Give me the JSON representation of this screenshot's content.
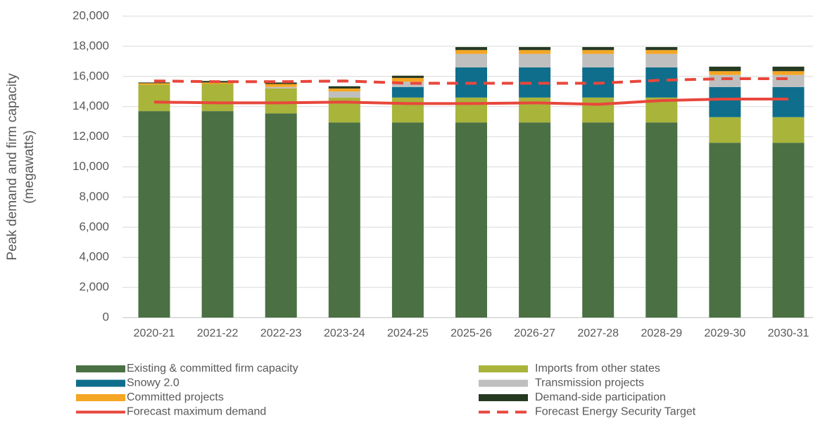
{
  "chart_data": {
    "type": "bar",
    "stacked": true,
    "y_label": [
      "Peak demand and firm capacity",
      "(megawatts)"
    ],
    "categories": [
      "2020-21",
      "2021-22",
      "2022-23",
      "2023-24",
      "2024-25",
      "2025-26",
      "2026-27",
      "2027-28",
      "2028-29",
      "2029-30",
      "2030-31"
    ],
    "series": [
      {
        "name": "Existing & committed firm capacity",
        "color": "#4a7043",
        "values": [
          13700,
          13700,
          13550,
          12950,
          12950,
          12950,
          12950,
          12950,
          12950,
          11600,
          11600
        ]
      },
      {
        "name": "Imports from other states",
        "color": "#a8b43a",
        "values": [
          1750,
          1800,
          1650,
          1650,
          1650,
          1650,
          1650,
          1650,
          1650,
          1700,
          1700
        ]
      },
      {
        "name": "Snowy 2.0",
        "color": "#0e6e8c",
        "values": [
          0,
          0,
          0,
          0,
          700,
          2000,
          2000,
          2000,
          2000,
          2000,
          2000
        ]
      },
      {
        "name": "Transmission projects",
        "color": "#bfbfbf",
        "values": [
          0,
          0,
          100,
          400,
          350,
          900,
          900,
          900,
          900,
          800,
          800
        ]
      },
      {
        "name": "Committed projects",
        "color": "#f5a623",
        "values": [
          100,
          100,
          200,
          200,
          250,
          250,
          250,
          250,
          250,
          250,
          250
        ]
      },
      {
        "name": "Demand-side participation",
        "color": "#263a22",
        "values": [
          50,
          100,
          100,
          150,
          150,
          200,
          200,
          200,
          200,
          300,
          300
        ]
      },
      {
        "name": "Forecast maximum demand",
        "type": "line",
        "color": "#e8473c",
        "values": [
          14300,
          14250,
          14250,
          14300,
          14200,
          14200,
          14250,
          14150,
          14400,
          14500,
          14500
        ]
      },
      {
        "name": "Forecast Energy Security Target",
        "type": "line",
        "dashed": true,
        "color": "#e8473c",
        "values": [
          15700,
          15650,
          15650,
          15700,
          15550,
          15550,
          15550,
          15550,
          15750,
          15850,
          15850
        ]
      }
    ],
    "ylim": [
      0,
      20000
    ],
    "yticks": [
      0,
      {
        "value": 2000,
        "label": "2,000"
      },
      {
        "value": 4000,
        "label": "4,000"
      },
      {
        "value": 6000,
        "label": "6,000"
      },
      {
        "value": 8000,
        "label": "8,000"
      },
      {
        "value": 10000,
        "label": "10,000"
      },
      {
        "value": 12000,
        "label": "12,000"
      },
      {
        "value": 14000,
        "label": "14,000"
      },
      {
        "value": 16000,
        "label": "16,000"
      },
      {
        "value": 18000,
        "label": "18,000"
      },
      {
        "value": 20000,
        "label": "20,000"
      }
    ],
    "grid": true,
    "legend": "bottom"
  }
}
